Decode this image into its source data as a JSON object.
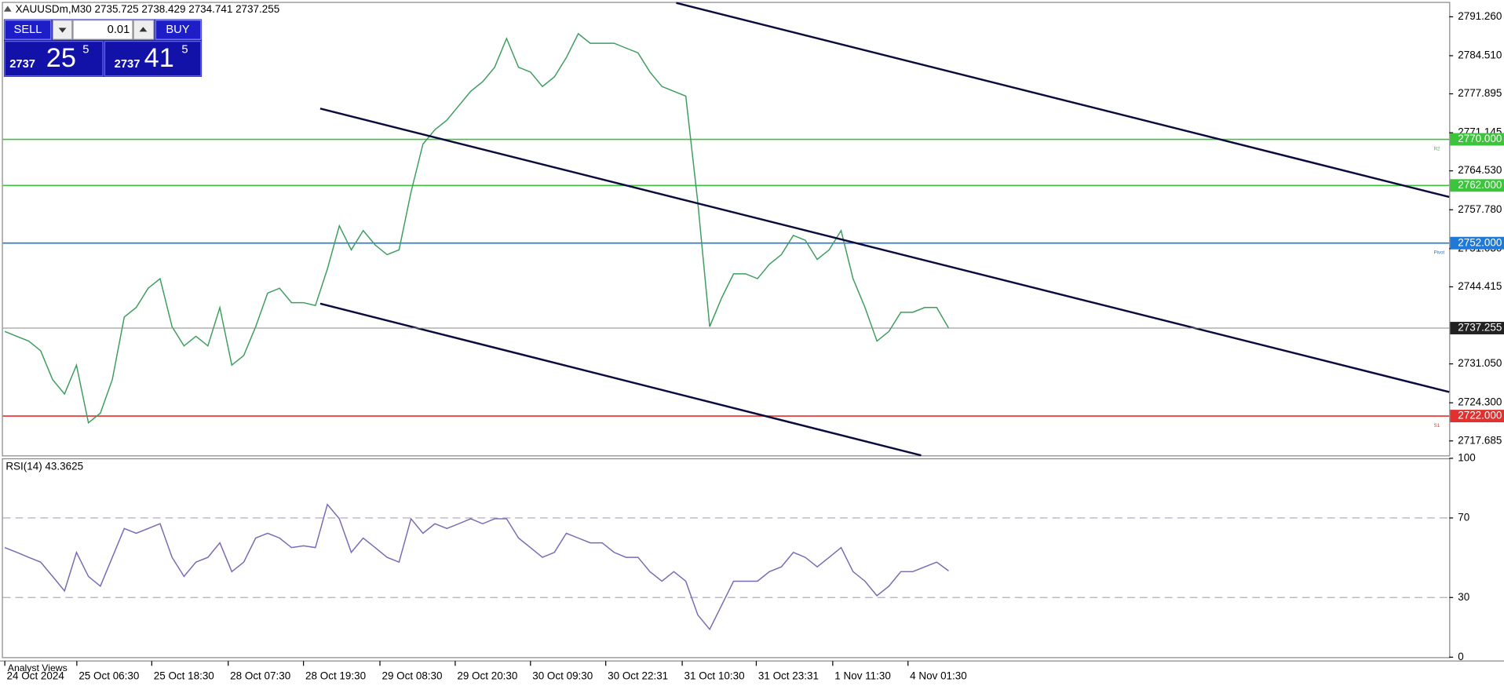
{
  "trade_panel": {
    "sell": "SELL",
    "buy": "BUY",
    "lot": "0.01",
    "sell_price_main": "2737",
    "sell_price_big": "25",
    "sell_price_sup": "5",
    "buy_price_main": "2737",
    "buy_price_big": "41",
    "buy_price_sup": "5"
  },
  "footer_tab": "Analyst Views",
  "chart_data": [
    {
      "type": "line",
      "title": "XAUUSDm,M30  2735.725 2738.429 2734.741 2737.255",
      "color": "#3c9d5d",
      "x": [
        0,
        1,
        2,
        3,
        4,
        5,
        6,
        7,
        8,
        9,
        10,
        11,
        12,
        13,
        14,
        15,
        16,
        17,
        18,
        19,
        20,
        21,
        22,
        23,
        24,
        25,
        26,
        27,
        28,
        29,
        30,
        31,
        32,
        33,
        34,
        35,
        36,
        37,
        38,
        39,
        40,
        41,
        42,
        43,
        44,
        45,
        46,
        47,
        48,
        49,
        50,
        51,
        52,
        53,
        54,
        55,
        56,
        57,
        58,
        59,
        60,
        61,
        62,
        63,
        64,
        65,
        66,
        67,
        68,
        69,
        70,
        71,
        72,
        73,
        74,
        75,
        76,
        77,
        78,
        79
      ],
      "values": [
        2736.67,
        2735.83,
        2735.0,
        2733.33,
        2728.33,
        2725.83,
        2730.83,
        2720.83,
        2722.5,
        2728.33,
        2739.17,
        2740.83,
        2744.17,
        2745.83,
        2737.5,
        2734.17,
        2735.83,
        2734.17,
        2740.83,
        2730.83,
        2732.5,
        2737.5,
        2743.33,
        2744.17,
        2741.67,
        2741.67,
        2741.17,
        2747.5,
        2755.0,
        2750.83,
        2754.17,
        2751.67,
        2750.0,
        2750.83,
        2760.83,
        2769.17,
        2771.67,
        2773.33,
        2775.83,
        2778.33,
        2780.0,
        2782.5,
        2787.5,
        2782.5,
        2781.67,
        2779.17,
        2780.83,
        2784.17,
        2788.33,
        2786.67,
        2786.67,
        2786.67,
        2785.83,
        2785.0,
        2781.67,
        2779.17,
        2778.33,
        2777.5,
        2759.17,
        2737.5,
        2742.5,
        2746.67,
        2746.67,
        2745.83,
        2748.33,
        2750.0,
        2753.33,
        2752.5,
        2749.17,
        2750.83,
        2754.17,
        2745.83,
        2740.83,
        2735.0,
        2736.67,
        2740.0,
        2740.0,
        2740.83,
        2740.83,
        2737.26
      ],
      "xlim": [
        -0.16,
        120.9
      ],
      "xticks": [
        {
          "value": 0,
          "label": "24 Oct 2024"
        },
        {
          "value": 6.03,
          "label": "25 Oct 06:30"
        },
        {
          "value": 12.3,
          "label": "25 Oct 18:30"
        },
        {
          "value": 18.7,
          "label": "28 Oct 07:30"
        },
        {
          "value": 25.0,
          "label": "28 Oct 19:30"
        },
        {
          "value": 31.4,
          "label": "29 Oct 08:30"
        },
        {
          "value": 37.7,
          "label": "29 Oct 20:30"
        },
        {
          "value": 44.0,
          "label": "30 Oct 09:30"
        },
        {
          "value": 50.3,
          "label": "30 Oct 22:31"
        },
        {
          "value": 56.7,
          "label": "31 Oct 10:30"
        },
        {
          "value": 62.9,
          "label": "31 Oct 23:31"
        },
        {
          "value": 69.3,
          "label": "1 Nov 11:30"
        },
        {
          "value": 75.6,
          "label": "4 Nov 01:30"
        }
      ],
      "ylim": [
        2715.17,
        2793.67
      ],
      "yticks": [
        {
          "value": 2791.26,
          "label": "2791.260"
        },
        {
          "value": 2784.51,
          "label": "2784.510"
        },
        {
          "value": 2777.895,
          "label": "2777.895"
        },
        {
          "value": 2771.145,
          "label": "2771.145"
        },
        {
          "value": 2764.53,
          "label": "2764.530"
        },
        {
          "value": 2757.78,
          "label": "2757.780"
        },
        {
          "value": 2751.03,
          "label": "2751.030"
        },
        {
          "value": 2744.415,
          "label": "2744.415"
        },
        {
          "value": 2731.05,
          "label": "2731.050"
        },
        {
          "value": 2724.3,
          "label": "2724.300"
        },
        {
          "value": 2717.685,
          "label": "2717.685"
        }
      ],
      "levels": [
        {
          "value": 2770,
          "label": "2770.000",
          "color": "#3cc43c",
          "tag": "R2"
        },
        {
          "value": 2762,
          "label": "2762.000",
          "color": "#3cc43c"
        },
        {
          "value": 2752,
          "label": "2752.000",
          "color": "#1e7ad6",
          "tag": "Pivot"
        },
        {
          "value": 2722,
          "label": "2722.000",
          "color": "#e03030",
          "tag": "S1"
        }
      ],
      "current": {
        "value": 2737.255,
        "label": "2737.255"
      },
      "trendlines": [
        {
          "color": "#0a0a3c",
          "x": [
            56.2,
            120.9
          ],
          "values": [
            2793.67,
            2760.0
          ]
        },
        {
          "color": "#0a0a3c",
          "x": [
            26.4,
            120.9
          ],
          "values": [
            2775.33,
            2726.17
          ]
        },
        {
          "color": "#0a0a3c",
          "x": [
            26.4,
            76.7
          ],
          "values": [
            2741.5,
            2715.17
          ]
        }
      ]
    },
    {
      "type": "line",
      "title": "RSI(14) 43.3625",
      "color": "#7b68b5",
      "x": [
        0,
        1,
        2,
        3,
        4,
        5,
        6,
        7,
        8,
        9,
        10,
        11,
        12,
        13,
        14,
        15,
        16,
        17,
        18,
        19,
        20,
        21,
        22,
        23,
        24,
        25,
        26,
        27,
        28,
        29,
        30,
        31,
        32,
        33,
        34,
        35,
        36,
        37,
        38,
        39,
        40,
        41,
        42,
        43,
        44,
        45,
        46,
        47,
        48,
        49,
        50,
        51,
        52,
        53,
        54,
        55,
        56,
        57,
        58,
        59,
        60,
        61,
        62,
        63,
        64,
        65,
        66,
        67,
        68,
        69,
        70,
        71,
        72,
        73,
        74,
        75,
        76,
        77,
        78,
        79
      ],
      "values": [
        55.1,
        52.7,
        50.2,
        47.8,
        40.6,
        33.3,
        52.7,
        40.6,
        35.7,
        50.2,
        64.7,
        62.3,
        64.7,
        67.1,
        50.2,
        40.6,
        47.8,
        50.2,
        57.5,
        43.0,
        47.8,
        59.9,
        62.3,
        59.9,
        55.1,
        56.0,
        55.1,
        76.8,
        69.6,
        52.7,
        59.9,
        55.1,
        50.2,
        47.8,
        69.6,
        62.3,
        67.1,
        64.7,
        67.1,
        69.6,
        67.1,
        69.6,
        69.6,
        59.9,
        55.1,
        50.2,
        52.7,
        62.3,
        59.9,
        57.5,
        57.5,
        52.7,
        50.2,
        50.2,
        43.0,
        38.2,
        43.0,
        38.2,
        21.3,
        14.0,
        26.1,
        38.2,
        38.2,
        38.2,
        43.0,
        45.4,
        52.7,
        50.2,
        45.4,
        50.2,
        55.1,
        43.0,
        38.2,
        30.9,
        35.7,
        43.0,
        43.0,
        45.4,
        47.8,
        43.36
      ],
      "xlim": [
        -0.16,
        120.9
      ],
      "ylim": [
        0,
        100
      ],
      "yticks": [
        0,
        30,
        70,
        100
      ],
      "levels": [
        {
          "value": 70,
          "color": "#b8a8c8"
        },
        {
          "value": 30,
          "color": "#b8a8c8"
        }
      ]
    }
  ]
}
